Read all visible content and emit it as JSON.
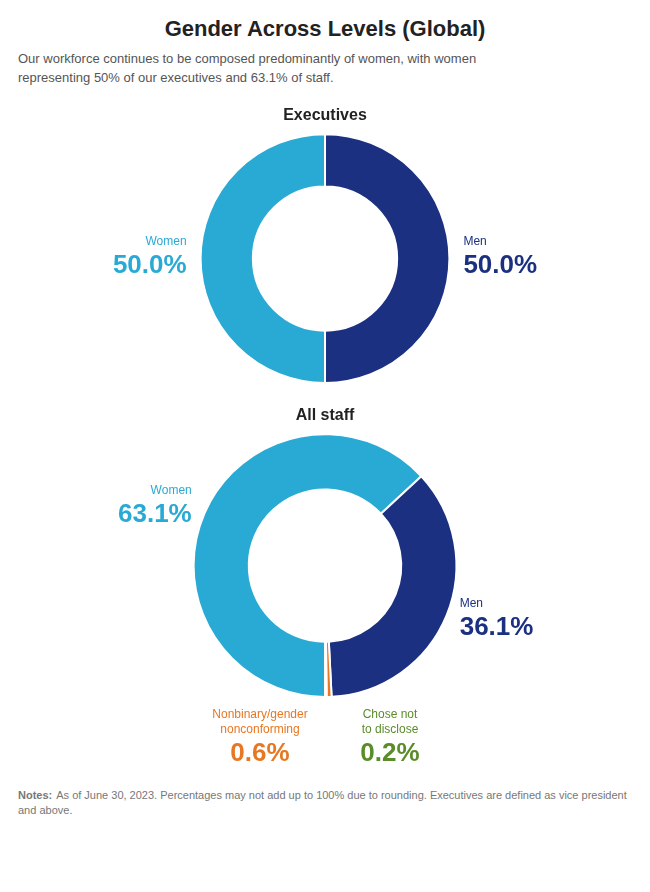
{
  "title": "Gender Across Levels (Global)",
  "subtitle": "Our workforce continues to be composed predominantly of women, with women\nrepresenting 50% of our executives and 63.1% of staff.",
  "notes_label": "Notes:",
  "notes": "As of June 30, 2023. Percentages may not add up to 100% due to rounding. Executives are defined as vice president and above.",
  "chart_data": [
    {
      "type": "donut",
      "title": "Executives",
      "categories": [
        "Women",
        "Men"
      ],
      "values": [
        50.0,
        50.0
      ],
      "value_labels": [
        "50.0%",
        "50.0%"
      ],
      "colors": [
        "#29aad4",
        "#1b3080"
      ],
      "data_labels": true
    },
    {
      "type": "donut",
      "title": "All staff",
      "categories": [
        "Women",
        "Men",
        "Nonbinary/gender\nnonconforming",
        "Chose not\nto disclose"
      ],
      "values": [
        63.1,
        36.1,
        0.6,
        0.2
      ],
      "value_labels": [
        "63.1%",
        "36.1%",
        "0.6%",
        "0.2%"
      ],
      "colors": [
        "#29aad4",
        "#1b3080",
        "#e87722",
        "#5b8c2a"
      ],
      "data_labels": true
    }
  ]
}
